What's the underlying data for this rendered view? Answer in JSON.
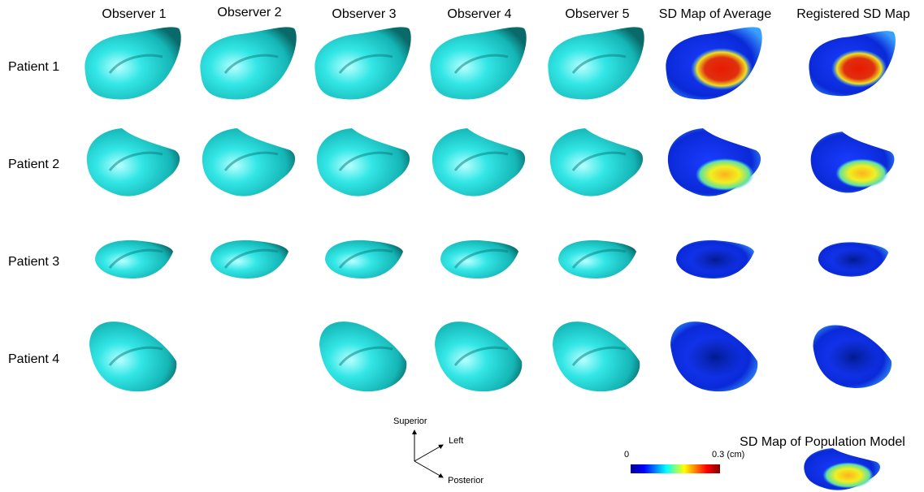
{
  "columns": [
    "Observer 1",
    "Observer 2",
    "Observer 3",
    "Observer 4",
    "Observer 5",
    "SD Map of Average",
    "Registered SD Map"
  ],
  "rows": [
    "Patient 1",
    "Patient 2",
    "Patient 3",
    "Patient 4"
  ],
  "population_model": {
    "title": "SD Map of Population Model"
  },
  "colorbar": {
    "min_label": "0",
    "max_label": "0.3 (cm)"
  },
  "orientation": {
    "superior": "Superior",
    "left": "Left",
    "posterior": "Posterior"
  }
}
